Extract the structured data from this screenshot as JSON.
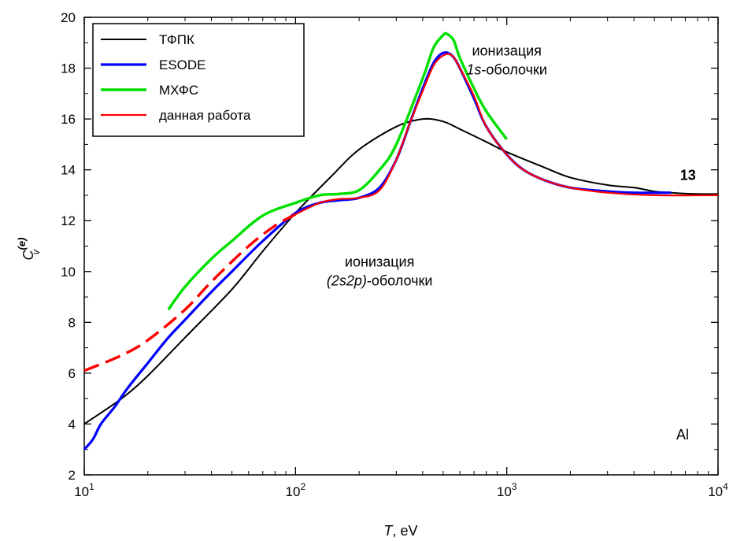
{
  "chart_data": {
    "type": "line",
    "xscale": "log",
    "xlim": [
      10,
      10000
    ],
    "ylim": [
      2,
      20
    ],
    "xlabel": {
      "var": "T",
      "unit": ", eV"
    },
    "ylabel": {
      "base": "C",
      "sub": "v",
      "sup": "(e)"
    },
    "x_ticks": [
      {
        "base": "10",
        "exp": "1",
        "value": 10
      },
      {
        "base": "10",
        "exp": "2",
        "value": 100
      },
      {
        "base": "10",
        "exp": "3",
        "value": 1000
      },
      {
        "base": "10",
        "exp": "4",
        "value": 10000
      }
    ],
    "y_ticks": [
      2,
      4,
      6,
      8,
      10,
      12,
      14,
      16,
      18,
      20
    ],
    "grid": false,
    "legend_position": "top-left",
    "series": [
      {
        "name": "ТФПК",
        "color": "#000000",
        "style": "solid",
        "points": [
          [
            10,
            4.0
          ],
          [
            15,
            5.0
          ],
          [
            20,
            5.9
          ],
          [
            30,
            7.4
          ],
          [
            50,
            9.3
          ],
          [
            70,
            10.8
          ],
          [
            100,
            12.3
          ],
          [
            150,
            13.8
          ],
          [
            200,
            14.8
          ],
          [
            300,
            15.7
          ],
          [
            400,
            16.0
          ],
          [
            500,
            15.9
          ],
          [
            600,
            15.6
          ],
          [
            800,
            15.1
          ],
          [
            1000,
            14.7
          ],
          [
            1500,
            14.1
          ],
          [
            2000,
            13.7
          ],
          [
            3000,
            13.4
          ],
          [
            4000,
            13.3
          ],
          [
            5000,
            13.15
          ],
          [
            6000,
            13.1
          ],
          [
            8000,
            13.05
          ],
          [
            10000,
            13.05
          ]
        ]
      },
      {
        "name": "ESODE",
        "color": "#0000ff",
        "style": "solid",
        "points": [
          [
            10,
            3.0
          ],
          [
            11,
            3.4
          ],
          [
            12,
            4.0
          ],
          [
            14,
            4.7
          ],
          [
            16,
            5.4
          ],
          [
            20,
            6.4
          ],
          [
            25,
            7.4
          ],
          [
            30,
            8.1
          ],
          [
            40,
            9.2
          ],
          [
            50,
            10.0
          ],
          [
            70,
            11.2
          ],
          [
            100,
            12.3
          ],
          [
            130,
            12.7
          ],
          [
            160,
            12.8
          ],
          [
            200,
            12.9
          ],
          [
            250,
            13.3
          ],
          [
            300,
            14.4
          ],
          [
            350,
            15.9
          ],
          [
            400,
            17.2
          ],
          [
            450,
            18.2
          ],
          [
            500,
            18.6
          ],
          [
            550,
            18.5
          ],
          [
            600,
            18.0
          ],
          [
            700,
            16.8
          ],
          [
            800,
            15.7
          ],
          [
            1000,
            14.6
          ],
          [
            1200,
            14.0
          ],
          [
            1500,
            13.6
          ],
          [
            2000,
            13.3
          ],
          [
            3000,
            13.15
          ],
          [
            4000,
            13.1
          ],
          [
            6000,
            13.1
          ]
        ]
      },
      {
        "name": "МХФС",
        "color": "#00e000",
        "style": "solid",
        "points": [
          [
            25,
            8.5
          ],
          [
            30,
            9.4
          ],
          [
            40,
            10.5
          ],
          [
            50,
            11.2
          ],
          [
            70,
            12.2
          ],
          [
            100,
            12.7
          ],
          [
            130,
            13.0
          ],
          [
            160,
            13.05
          ],
          [
            200,
            13.2
          ],
          [
            250,
            14.0
          ],
          [
            300,
            15.0
          ],
          [
            400,
            17.6
          ],
          [
            450,
            18.8
          ],
          [
            500,
            19.3
          ],
          [
            520,
            19.35
          ],
          [
            560,
            19.1
          ],
          [
            600,
            18.4
          ],
          [
            700,
            17.2
          ],
          [
            800,
            16.3
          ],
          [
            1000,
            15.2
          ]
        ]
      },
      {
        "name": "данная работа",
        "color": "#ff0000",
        "style": "solid",
        "dashed_points": [
          [
            10,
            6.1
          ],
          [
            15,
            6.7
          ],
          [
            20,
            7.3
          ],
          [
            30,
            8.5
          ],
          [
            40,
            9.6
          ],
          [
            60,
            11.0
          ],
          [
            80,
            11.8
          ],
          [
            100,
            12.25
          ]
        ],
        "points": [
          [
            100,
            12.25
          ],
          [
            130,
            12.7
          ],
          [
            160,
            12.85
          ],
          [
            200,
            12.9
          ],
          [
            250,
            13.2
          ],
          [
            300,
            14.4
          ],
          [
            350,
            15.9
          ],
          [
            400,
            17.1
          ],
          [
            450,
            18.1
          ],
          [
            500,
            18.5
          ],
          [
            550,
            18.5
          ],
          [
            600,
            18.0
          ],
          [
            700,
            16.9
          ],
          [
            800,
            15.7
          ],
          [
            1000,
            14.6
          ],
          [
            1200,
            14.0
          ],
          [
            1500,
            13.6
          ],
          [
            2000,
            13.3
          ],
          [
            3000,
            13.1
          ],
          [
            5000,
            13.0
          ],
          [
            10000,
            13.0
          ]
        ]
      }
    ],
    "annotations": [
      {
        "id": "ion-1s",
        "lines": [
          [
            {
              "t": "ионизация",
              "i": false
            }
          ],
          [
            {
              "t": "1s",
              "i": true
            },
            {
              "t": "-оболочки",
              "i": false
            }
          ]
        ],
        "x": 1000,
        "y": 18.5
      },
      {
        "id": "ion-2s2p",
        "lines": [
          [
            {
              "t": "ионизация",
              "i": false
            }
          ],
          [
            {
              "t": "(2s2p)",
              "i": true
            },
            {
              "t": "-оболочки",
              "i": false
            }
          ]
        ],
        "x": 250,
        "y": 10.2
      },
      {
        "id": "label-13",
        "text": "13",
        "bold": true,
        "x": 7200,
        "y": 13.6
      },
      {
        "id": "element-al",
        "text": "Al",
        "x": 6800,
        "y": 3.4
      }
    ]
  }
}
